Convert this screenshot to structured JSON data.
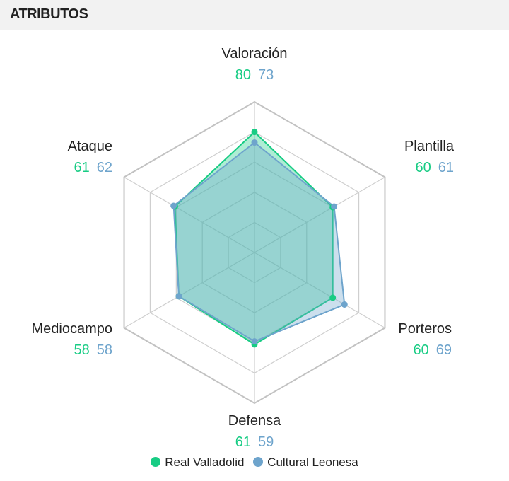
{
  "header": {
    "title": "ATRIBUTOS"
  },
  "colors": {
    "series_a": "#18cc84",
    "series_b": "#6ea4cc",
    "fill_a": "#18cc84",
    "fill_b": "#6ea4cc",
    "grid": "#cfcfcf",
    "grid_outer": "#c2c2c2"
  },
  "chart_data": {
    "type": "radar",
    "axes": [
      "Valoración",
      "Plantilla",
      "Porteros",
      "Defensa",
      "Mediocampo",
      "Ataque"
    ],
    "range": [
      0,
      100
    ],
    "rings": 5,
    "series": [
      {
        "name": "Real Valladolid",
        "values": [
          80,
          60,
          60,
          61,
          58,
          61
        ]
      },
      {
        "name": "Cultural Leonesa",
        "values": [
          73,
          61,
          69,
          59,
          58,
          62
        ]
      }
    ]
  }
}
